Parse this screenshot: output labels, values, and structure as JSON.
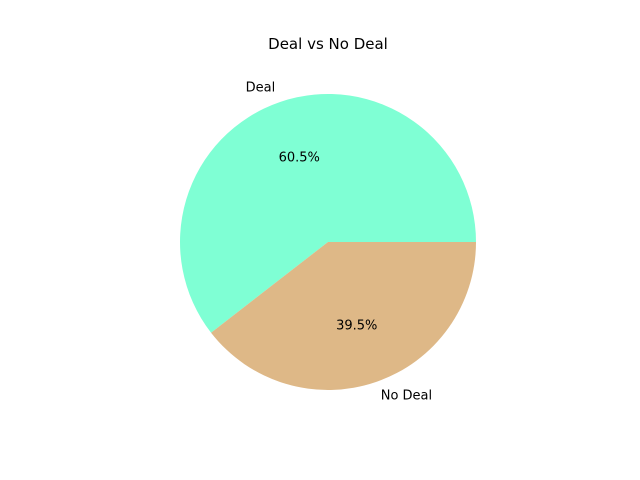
{
  "chart_data": {
    "type": "pie",
    "title": "Deal vs No Deal",
    "slices": [
      {
        "label": "Deal",
        "value": 60.5,
        "pct_label": "60.5%",
        "color": "#7fffd4"
      },
      {
        "label": "No Deal",
        "value": 39.5,
        "pct_label": "39.5%",
        "color": "#deb887"
      }
    ],
    "start_angle_deg": 0,
    "direction": "counterclockwise",
    "legend": "none"
  }
}
